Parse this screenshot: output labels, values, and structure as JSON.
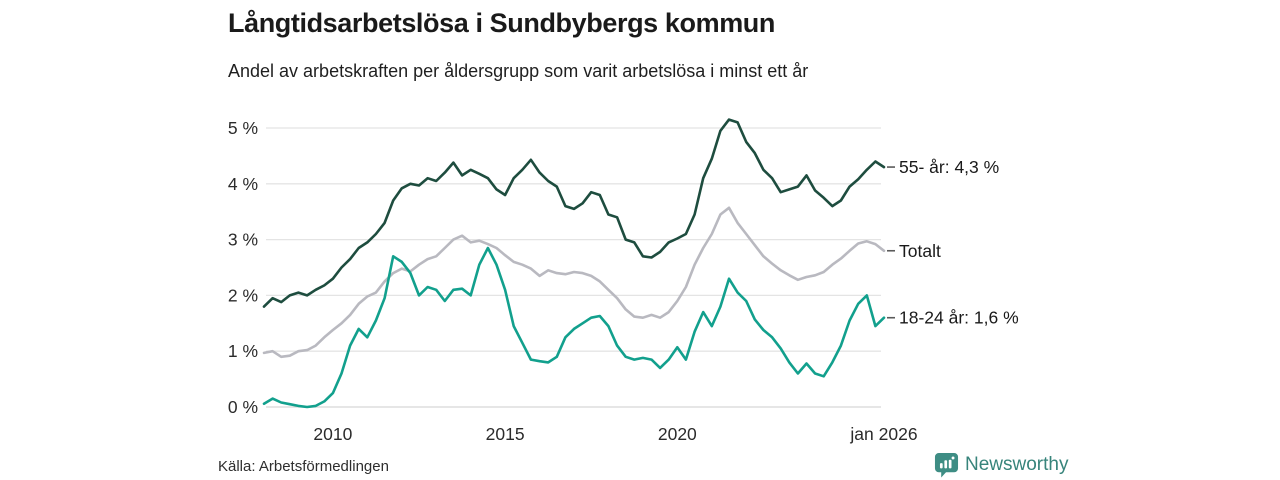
{
  "header": {
    "title": "Långtidsarbetslösa i Sundbybergs kommun",
    "subtitle": "Andel av arbetskraften per åldersgrupp som varit arbetslösa i minst ett år"
  },
  "footer": {
    "source": "Källa: Arbetsförmedlingen",
    "brand": "Newsworthy"
  },
  "colors": {
    "series_55": "#1e4d3f",
    "series_total": "#b9b9c0",
    "series_18_24": "#12a08d",
    "gridline": "#e4e4e4",
    "baseline": "#d6d6d6",
    "tick_text": "#2b2b2b",
    "label_text": "#1a1a1a",
    "connector": "#5a5a5a",
    "brand_teal": "#3e8d84"
  },
  "chart_data": {
    "type": "line",
    "title": "Långtidsarbetslösa i Sundbybergs kommun",
    "subtitle": "Andel av arbetskraften per åldersgrupp som varit arbetslösa i minst ett år",
    "grid": "horizontal",
    "legend_position": "right-end-labels",
    "xlim": [
      2008,
      2026
    ],
    "ylim": [
      0,
      5
    ],
    "yticks": [
      {
        "value": 0,
        "label": "0 %"
      },
      {
        "value": 1,
        "label": "1 %"
      },
      {
        "value": 2,
        "label": "2 %"
      },
      {
        "value": 3,
        "label": "3 %"
      },
      {
        "value": 4,
        "label": "4 %"
      },
      {
        "value": 5,
        "label": "5 %"
      }
    ],
    "xticks": [
      {
        "year": 2010,
        "label": "2010"
      },
      {
        "year": 2015,
        "label": "2015"
      },
      {
        "year": 2020,
        "label": "2020"
      },
      {
        "year": 2026,
        "label": "jan 2026"
      }
    ],
    "x": [
      2008,
      2008.25,
      2008.5,
      2008.75,
      2009,
      2009.25,
      2009.5,
      2009.75,
      2010,
      2010.25,
      2010.5,
      2010.75,
      2011,
      2011.25,
      2011.5,
      2011.75,
      2012,
      2012.25,
      2012.5,
      2012.75,
      2013,
      2013.25,
      2013.5,
      2013.75,
      2014,
      2014.25,
      2014.5,
      2014.75,
      2015,
      2015.25,
      2015.5,
      2015.75,
      2016,
      2016.25,
      2016.5,
      2016.75,
      2017,
      2017.25,
      2017.5,
      2017.75,
      2018,
      2018.25,
      2018.5,
      2018.75,
      2019,
      2019.25,
      2019.5,
      2019.75,
      2020,
      2020.25,
      2020.5,
      2020.75,
      2021,
      2021.25,
      2021.5,
      2021.75,
      2022,
      2022.25,
      2022.5,
      2022.75,
      2023,
      2023.25,
      2023.5,
      2023.75,
      2024,
      2024.25,
      2024.5,
      2024.75,
      2025,
      2025.25,
      2025.5,
      2025.75,
      2026
    ],
    "series": [
      {
        "name": "55- år",
        "end_label": "55- år: 4,3 %",
        "latest_value": "4,3 %",
        "color": "#1e4d3f",
        "values": [
          1.8,
          1.95,
          1.88,
          2.0,
          2.05,
          2.0,
          2.1,
          2.18,
          2.3,
          2.5,
          2.65,
          2.85,
          2.95,
          3.1,
          3.3,
          3.7,
          3.92,
          4.0,
          3.97,
          4.1,
          4.05,
          4.2,
          4.38,
          4.15,
          4.25,
          4.18,
          4.1,
          3.9,
          3.8,
          4.1,
          4.25,
          4.43,
          4.2,
          4.05,
          3.95,
          3.6,
          3.55,
          3.65,
          3.85,
          3.8,
          3.45,
          3.4,
          3.0,
          2.95,
          2.7,
          2.68,
          2.78,
          2.95,
          3.02,
          3.1,
          3.45,
          4.1,
          4.45,
          4.95,
          5.15,
          5.1,
          4.75,
          4.55,
          4.25,
          4.1,
          3.85,
          3.9,
          3.95,
          4.15,
          3.88,
          3.75,
          3.6,
          3.7,
          3.95,
          4.08,
          4.25,
          4.4,
          4.3
        ]
      },
      {
        "name": "Totalt",
        "end_label": "Totalt",
        "latest_value": "2,8 %",
        "color": "#b9b9c0",
        "values": [
          0.97,
          1.0,
          0.9,
          0.92,
          1.0,
          1.02,
          1.1,
          1.25,
          1.38,
          1.5,
          1.65,
          1.85,
          1.98,
          2.05,
          2.25,
          2.4,
          2.48,
          2.43,
          2.55,
          2.65,
          2.7,
          2.85,
          3.0,
          3.07,
          2.95,
          2.98,
          2.92,
          2.85,
          2.72,
          2.6,
          2.55,
          2.48,
          2.35,
          2.45,
          2.4,
          2.38,
          2.42,
          2.4,
          2.35,
          2.25,
          2.1,
          1.95,
          1.75,
          1.62,
          1.6,
          1.65,
          1.6,
          1.7,
          1.9,
          2.15,
          2.55,
          2.85,
          3.1,
          3.45,
          3.57,
          3.3,
          3.1,
          2.9,
          2.7,
          2.57,
          2.45,
          2.36,
          2.28,
          2.33,
          2.36,
          2.42,
          2.55,
          2.66,
          2.8,
          2.93,
          2.97,
          2.92,
          2.8
        ]
      },
      {
        "name": "18-24 år",
        "end_label": "18-24 år: 1,6 %",
        "latest_value": "1,6 %",
        "color": "#12a08d",
        "values": [
          0.06,
          0.15,
          0.08,
          0.05,
          0.02,
          0.0,
          0.02,
          0.1,
          0.25,
          0.6,
          1.1,
          1.4,
          1.25,
          1.55,
          1.95,
          2.7,
          2.6,
          2.4,
          2.0,
          2.15,
          2.1,
          1.9,
          2.1,
          2.12,
          2.0,
          2.55,
          2.85,
          2.55,
          2.1,
          1.45,
          1.15,
          0.85,
          0.82,
          0.8,
          0.9,
          1.25,
          1.4,
          1.5,
          1.6,
          1.63,
          1.45,
          1.1,
          0.9,
          0.85,
          0.88,
          0.85,
          0.7,
          0.85,
          1.07,
          0.85,
          1.35,
          1.7,
          1.45,
          1.8,
          2.3,
          2.05,
          1.9,
          1.57,
          1.38,
          1.25,
          1.05,
          0.8,
          0.6,
          0.78,
          0.6,
          0.55,
          0.8,
          1.1,
          1.55,
          1.85,
          2.0,
          1.45,
          1.6
        ]
      }
    ]
  }
}
